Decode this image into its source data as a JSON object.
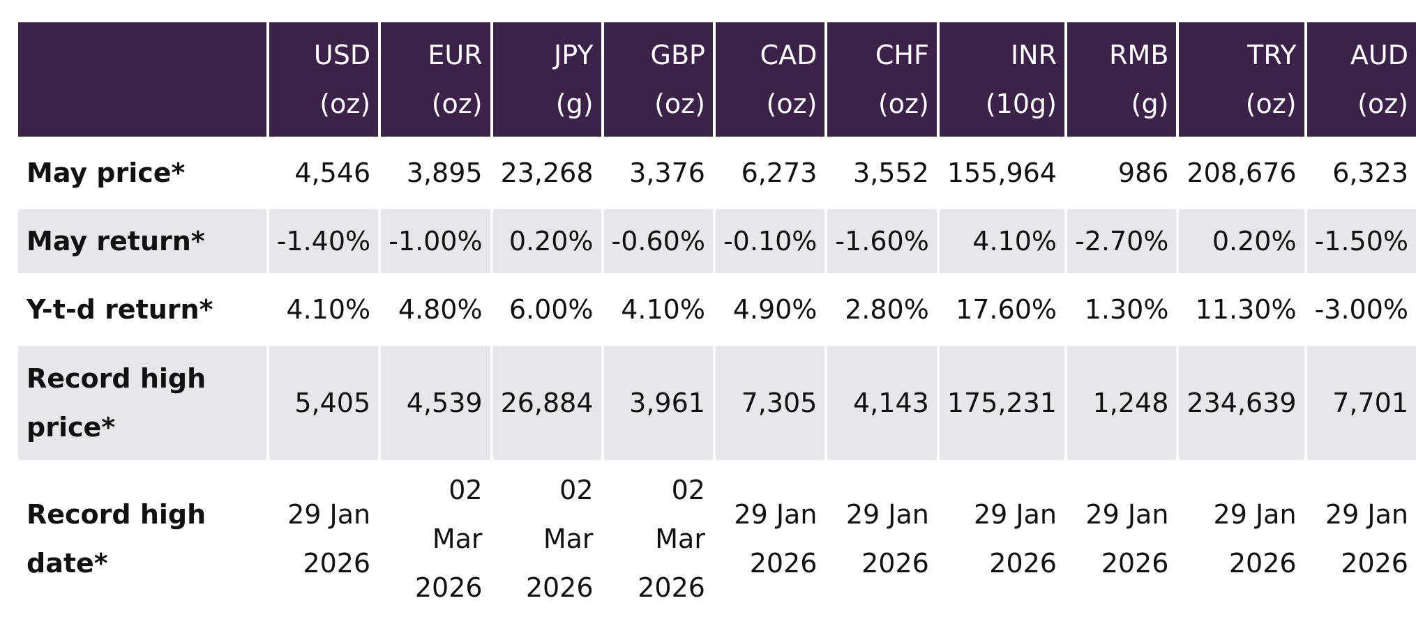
{
  "table": {
    "headers": [
      {
        "code": "USD",
        "unit": "(oz)"
      },
      {
        "code": "EUR",
        "unit": "(oz)"
      },
      {
        "code": "JPY",
        "unit": "(g)"
      },
      {
        "code": "GBP",
        "unit": "(oz)"
      },
      {
        "code": "CAD",
        "unit": "(oz)"
      },
      {
        "code": "CHF",
        "unit": "(oz)"
      },
      {
        "code": "INR",
        "unit": "(10g)"
      },
      {
        "code": "RMB",
        "unit": "(g)"
      },
      {
        "code": "TRY",
        "unit": "(oz)"
      },
      {
        "code": "AUD",
        "unit": "(oz)"
      }
    ],
    "rows": {
      "may_price": {
        "label": "May price*",
        "values": [
          "4,546",
          "3,895",
          "23,268",
          "3,376",
          "6,273",
          "3,552",
          "155,964",
          "986",
          "208,676",
          "6,323"
        ]
      },
      "may_return": {
        "label": "May return*",
        "values": [
          "-1.40%",
          "-1.00%",
          "0.20%",
          "-0.60%",
          "-0.10%",
          "-1.60%",
          "4.10%",
          "-2.70%",
          "0.20%",
          "-1.50%"
        ]
      },
      "ytd_return": {
        "label": "Y-t-d return*",
        "values": [
          "4.10%",
          "4.80%",
          "6.00%",
          "4.10%",
          "4.90%",
          "2.80%",
          "17.60%",
          "1.30%",
          "11.30%",
          "-3.00%"
        ]
      },
      "record_high_price": {
        "label_line1": "Record high",
        "label_line2": "price*",
        "values": [
          "5,405",
          "4,539",
          "26,884",
          "3,961",
          "7,305",
          "4,143",
          "175,231",
          "1,248",
          "234,639",
          "7,701"
        ]
      },
      "record_high_date": {
        "label": "Record high date*",
        "values": [
          [
            "29 Jan",
            "2026"
          ],
          [
            "02",
            "Mar",
            "2026"
          ],
          [
            "02",
            "Mar",
            "2026"
          ],
          [
            "02",
            "Mar",
            "2026"
          ],
          [
            "29 Jan",
            "2026"
          ],
          [
            "29 Jan",
            "2026"
          ],
          [
            "29 Jan",
            "2026"
          ],
          [
            "29 Jan",
            "2026"
          ],
          [
            "29 Jan",
            "2026"
          ],
          [
            "29 Jan",
            "2026"
          ]
        ]
      }
    }
  }
}
